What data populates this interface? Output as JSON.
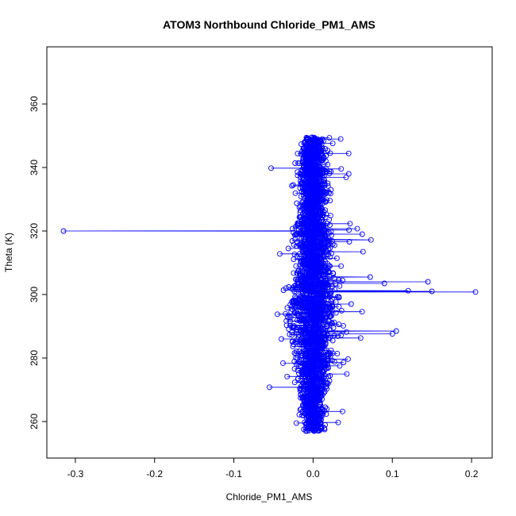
{
  "chart_data": {
    "type": "scatter",
    "title": "ATOM3 Northbound Chloride_PM1_AMS",
    "xlabel": "Chloride_PM1_AMS",
    "ylabel": "Theta (K)",
    "xlim": [
      -0.336,
      0.226
    ],
    "ylim": [
      248.5,
      378
    ],
    "x_ticks": [
      -0.3,
      -0.2,
      -0.1,
      0.0,
      0.1,
      0.2
    ],
    "x_tick_labels": [
      "-0.3",
      "-0.2",
      "-0.1",
      "0.0",
      "0.1",
      "0.2"
    ],
    "y_ticks": [
      260,
      280,
      300,
      320,
      340,
      360
    ],
    "y_tick_labels": [
      "260",
      "280",
      "300",
      "320",
      "340",
      "360"
    ],
    "grid": false,
    "marker": "open-circle",
    "connected_by_line": true,
    "series_color": "#0000ff",
    "outliers": [
      {
        "x": -0.315,
        "y": 320
      },
      {
        "x": 0.205,
        "y": 300.8
      },
      {
        "x": 0.15,
        "y": 301.0
      },
      {
        "x": 0.145,
        "y": 304.0
      },
      {
        "x": 0.105,
        "y": 288.5
      },
      {
        "x": 0.1,
        "y": 287.6
      },
      {
        "x": -0.053,
        "y": 339.8
      },
      {
        "x": -0.055,
        "y": 270.8
      },
      {
        "x": 0.062,
        "y": 319.0
      },
      {
        "x": 0.073,
        "y": 317.2
      },
      {
        "x": 0.072,
        "y": 305.5
      },
      {
        "x": 0.09,
        "y": 303.5
      },
      {
        "x": 0.06,
        "y": 286.3
      },
      {
        "x": 0.045,
        "y": 338.0
      },
      {
        "x": -0.042,
        "y": 312.8
      },
      {
        "x": -0.04,
        "y": 286.0
      },
      {
        "x": -0.038,
        "y": 278.4
      },
      {
        "x": -0.045,
        "y": 293.8
      },
      {
        "x": 0.12,
        "y": 301.2
      },
      {
        "x": 0.048,
        "y": 297.0
      }
    ]
  }
}
